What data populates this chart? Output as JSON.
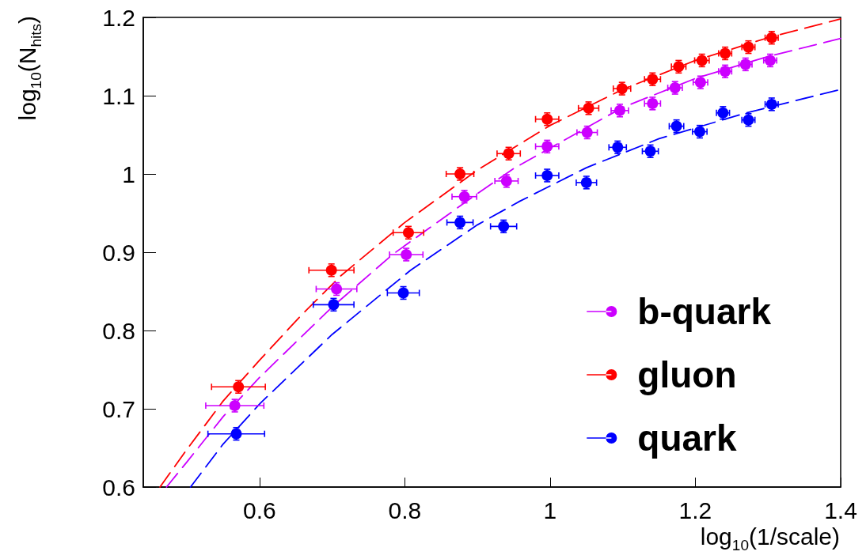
{
  "chart_data": {
    "type": "scatter",
    "xlabel": "log$_{10}$(1/scale)",
    "ylabel": "log$_{10}$(N$_{hits}$)",
    "xlim": [
      0.44,
      1.4
    ],
    "xticks": [
      0.6,
      0.8,
      1,
      1.2,
      1.4
    ],
    "ylim": [
      0.6,
      1.2
    ],
    "yticks": [
      0.6,
      0.7,
      0.8,
      0.9,
      1,
      1.1,
      1.2
    ],
    "grid": false,
    "legend": "bottom right",
    "marker": "circle",
    "series": [
      {
        "name": "b-quark",
        "color": "#cc00ff",
        "x": [
          0.566,
          0.706,
          0.802,
          0.882,
          0.94,
          0.996,
          1.051,
          1.096,
          1.141,
          1.172,
          1.207,
          1.241,
          1.269,
          1.303
        ],
        "values": [
          0.704,
          0.853,
          0.897,
          0.971,
          0.991,
          1.035,
          1.053,
          1.081,
          1.09,
          1.11,
          1.117,
          1.131,
          1.14,
          1.145
        ],
        "errors": [
          0.008,
          0.008,
          0.008,
          0.008,
          0.008,
          0.008,
          0.008,
          0.008,
          0.008,
          0.008,
          0.008,
          0.008,
          0.008,
          0.008
        ],
        "xerrors": [
          0.04,
          0.028,
          0.023,
          0.017,
          0.016,
          0.016,
          0.014,
          0.012,
          0.011,
          0.01,
          0.01,
          0.009,
          0.009,
          0.009
        ]
      },
      {
        "name": "gluon",
        "color": "#ff0000",
        "x": [
          0.571,
          0.699,
          0.805,
          0.876,
          0.943,
          0.996,
          1.053,
          1.099,
          1.141,
          1.177,
          1.209,
          1.241,
          1.273,
          1.305
        ],
        "values": [
          0.728,
          0.877,
          0.925,
          1.0,
          1.026,
          1.07,
          1.084,
          1.109,
          1.121,
          1.137,
          1.145,
          1.154,
          1.162,
          1.174
        ],
        "errors": [
          0.008,
          0.008,
          0.008,
          0.008,
          0.008,
          0.008,
          0.008,
          0.008,
          0.008,
          0.008,
          0.008,
          0.008,
          0.008,
          0.008
        ],
        "xerrors": [
          0.037,
          0.031,
          0.021,
          0.019,
          0.016,
          0.016,
          0.014,
          0.012,
          0.011,
          0.01,
          0.01,
          0.009,
          0.009,
          0.009
        ]
      },
      {
        "name": "quark",
        "color": "#0000ff",
        "x": [
          0.568,
          0.702,
          0.798,
          0.876,
          0.936,
          0.996,
          1.05,
          1.093,
          1.138,
          1.174,
          1.206,
          1.238,
          1.273,
          1.305
        ],
        "values": [
          0.668,
          0.833,
          0.848,
          0.938,
          0.933,
          0.998,
          0.989,
          1.034,
          1.029,
          1.061,
          1.054,
          1.078,
          1.069,
          1.089
        ],
        "errors": [
          0.008,
          0.008,
          0.008,
          0.008,
          0.008,
          0.008,
          0.008,
          0.008,
          0.008,
          0.008,
          0.008,
          0.008,
          0.008,
          0.008
        ],
        "xerrors": [
          0.039,
          0.028,
          0.022,
          0.018,
          0.018,
          0.016,
          0.014,
          0.012,
          0.011,
          0.01,
          0.01,
          0.009,
          0.009,
          0.009
        ]
      },
      {
        "type": "line",
        "color": "#cc00ff",
        "line_style": "dashed",
        "marker": "none",
        "x": [
          0.472,
          0.5,
          0.55,
          0.6,
          0.7,
          0.783,
          0.9,
          0.95,
          1.023,
          1.1,
          1.2,
          1.3,
          1.4
        ],
        "values": [
          0.6,
          0.632,
          0.69,
          0.74,
          0.83,
          0.897,
          0.975,
          1.007,
          1.045,
          1.085,
          1.122,
          1.15,
          1.173
        ]
      },
      {
        "type": "line",
        "color": "#ff0000",
        "line_style": "dashed",
        "marker": "none",
        "x": [
          0.463,
          0.5,
          0.55,
          0.6,
          0.656,
          0.712,
          0.8,
          0.9,
          1.0,
          1.1,
          1.2,
          1.3,
          1.4
        ],
        "values": [
          0.6,
          0.648,
          0.71,
          0.762,
          0.818,
          0.87,
          0.938,
          1.005,
          1.062,
          1.108,
          1.145,
          1.174,
          1.198
        ]
      },
      {
        "type": "line",
        "color": "#0000ff",
        "line_style": "dashed",
        "marker": "none",
        "x": [
          0.505,
          0.55,
          0.601,
          0.7,
          0.808,
          0.9,
          0.958,
          1.05,
          1.15,
          1.27,
          1.4
        ],
        "values": [
          0.6,
          0.655,
          0.707,
          0.795,
          0.877,
          0.935,
          0.965,
          1.008,
          1.045,
          1.078,
          1.108
        ]
      }
    ]
  }
}
